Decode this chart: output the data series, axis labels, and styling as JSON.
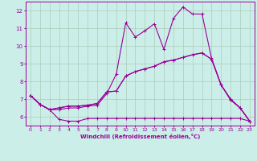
{
  "xlabel": "Windchill (Refroidissement éolien,°C)",
  "bg_color": "#cceee8",
  "line_color": "#990099",
  "grid_color": "#aaccbb",
  "xlim": [
    -0.5,
    23.5
  ],
  "ylim": [
    5.5,
    12.5
  ],
  "xticks": [
    0,
    1,
    2,
    3,
    4,
    5,
    6,
    7,
    8,
    9,
    10,
    11,
    12,
    13,
    14,
    15,
    16,
    17,
    18,
    19,
    20,
    21,
    22,
    23
  ],
  "yticks": [
    6,
    7,
    8,
    9,
    10,
    11,
    12
  ],
  "line1_x": [
    0,
    1,
    2,
    3,
    4,
    5,
    6,
    7,
    8,
    9,
    10,
    11,
    12,
    13,
    14,
    15,
    16,
    17,
    18,
    19,
    20,
    21,
    22,
    23
  ],
  "line1_y": [
    7.2,
    6.7,
    6.4,
    5.85,
    5.75,
    5.75,
    5.9,
    5.9,
    5.9,
    5.9,
    5.9,
    5.9,
    5.9,
    5.9,
    5.9,
    5.9,
    5.9,
    5.9,
    5.9,
    5.9,
    5.9,
    5.9,
    5.9,
    5.75
  ],
  "line2_x": [
    0,
    1,
    2,
    3,
    4,
    5,
    6,
    7,
    8,
    9,
    10,
    11,
    12,
    13,
    14,
    15,
    16,
    17,
    18,
    19,
    20,
    21,
    22,
    23
  ],
  "line2_y": [
    7.2,
    6.7,
    6.4,
    6.4,
    6.5,
    6.5,
    6.6,
    6.65,
    7.3,
    8.4,
    11.3,
    10.5,
    10.85,
    11.25,
    9.8,
    11.55,
    12.2,
    11.8,
    11.8,
    9.3,
    7.8,
    7.0,
    6.5,
    5.75
  ],
  "line3_x": [
    0,
    1,
    2,
    3,
    4,
    5,
    6,
    7,
    8,
    9,
    10,
    11,
    12,
    13,
    14,
    15,
    16,
    17,
    18,
    19,
    20,
    21,
    22,
    23
  ],
  "line3_y": [
    7.2,
    6.7,
    6.4,
    6.5,
    6.6,
    6.6,
    6.65,
    6.75,
    7.4,
    7.45,
    8.3,
    8.55,
    8.7,
    8.85,
    9.1,
    9.2,
    9.35,
    9.5,
    9.6,
    9.25,
    7.8,
    6.95,
    6.5,
    5.75
  ],
  "line4_x": [
    0,
    1,
    2,
    3,
    4,
    5,
    6,
    7,
    8,
    9,
    10,
    11,
    12,
    13,
    14,
    15,
    16,
    17,
    18,
    19,
    20,
    21,
    22,
    23
  ],
  "line4_y": [
    7.2,
    6.7,
    6.4,
    6.5,
    6.6,
    6.6,
    6.65,
    6.75,
    7.4,
    7.45,
    8.3,
    8.55,
    8.7,
    8.85,
    9.1,
    9.2,
    9.35,
    9.5,
    9.6,
    9.25,
    7.8,
    6.95,
    6.5,
    5.75
  ]
}
